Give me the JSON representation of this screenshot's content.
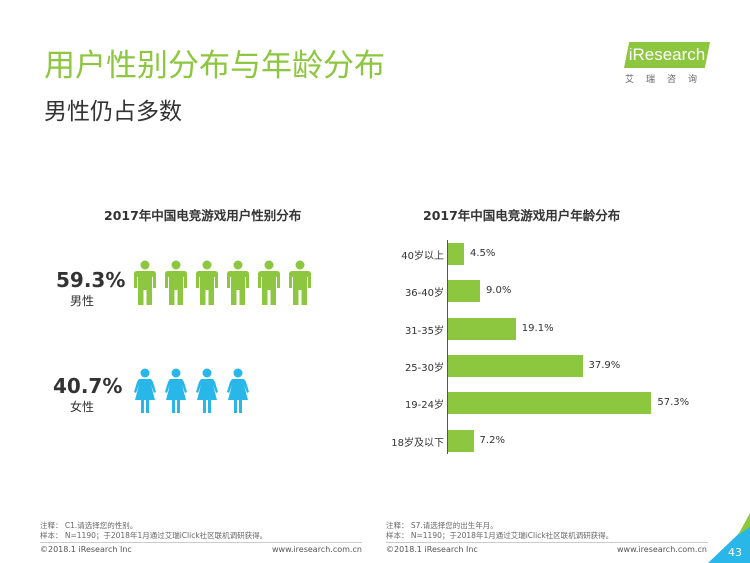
{
  "slide": {
    "title": "用户性别分布与年龄分布",
    "subtitle": "男性仍占多数",
    "page_number": "43"
  },
  "logo": {
    "brand": "iResearch",
    "chinese": "艾瑞咨询"
  },
  "colors": {
    "accent": "#8dc63f",
    "female": "#29b6e8",
    "text": "#333333"
  },
  "gender_chart": {
    "title": "2017年中国电竞游戏用户性别分布",
    "male": {
      "percent": "59.3%",
      "label": "男性",
      "icon": "male-person-icon",
      "icon_count": 6
    },
    "female": {
      "percent": "40.7%",
      "label": "女性",
      "icon": "female-person-icon",
      "icon_count": 4
    }
  },
  "chart_data": [
    {
      "type": "pictogram",
      "title": "2017年中国电竞游戏用户性别分布",
      "categories": [
        "男性",
        "女性"
      ],
      "values": [
        59.3,
        40.7
      ],
      "unit": "%"
    },
    {
      "type": "bar",
      "orientation": "horizontal",
      "title": "2017年中国电竞游戏用户年龄分布",
      "categories": [
        "40岁以上",
        "36-40岁",
        "31-35岁",
        "25-30岁",
        "19-24岁",
        "18岁及以下"
      ],
      "values": [
        4.5,
        9.0,
        19.1,
        37.9,
        57.3,
        7.2
      ],
      "labels": [
        "4.5%",
        "9.0%",
        "19.1%",
        "37.9%",
        "57.3%",
        "7.2%"
      ],
      "xlim": [
        0,
        60
      ],
      "grid": false
    }
  ],
  "notes": {
    "left": {
      "line1": "注释： C1.请选择您的性别。",
      "line2": "样本： N=1190；于2018年1月通过艾瑞iClick社区联机调研获得。"
    },
    "right": {
      "line1": "注释： S7.请选择您的出生年月。",
      "line2": "样本： N=1190；于2018年1月通过艾瑞iClick社区联机调研获得。"
    }
  },
  "footer": {
    "copyright_left": "©2018.1 iResearch Inc",
    "url_left": "www.iresearch.com.cn",
    "copyright_right": "©2018.1 iResearch Inc",
    "url_right": "www.iresearch.com.cn"
  }
}
